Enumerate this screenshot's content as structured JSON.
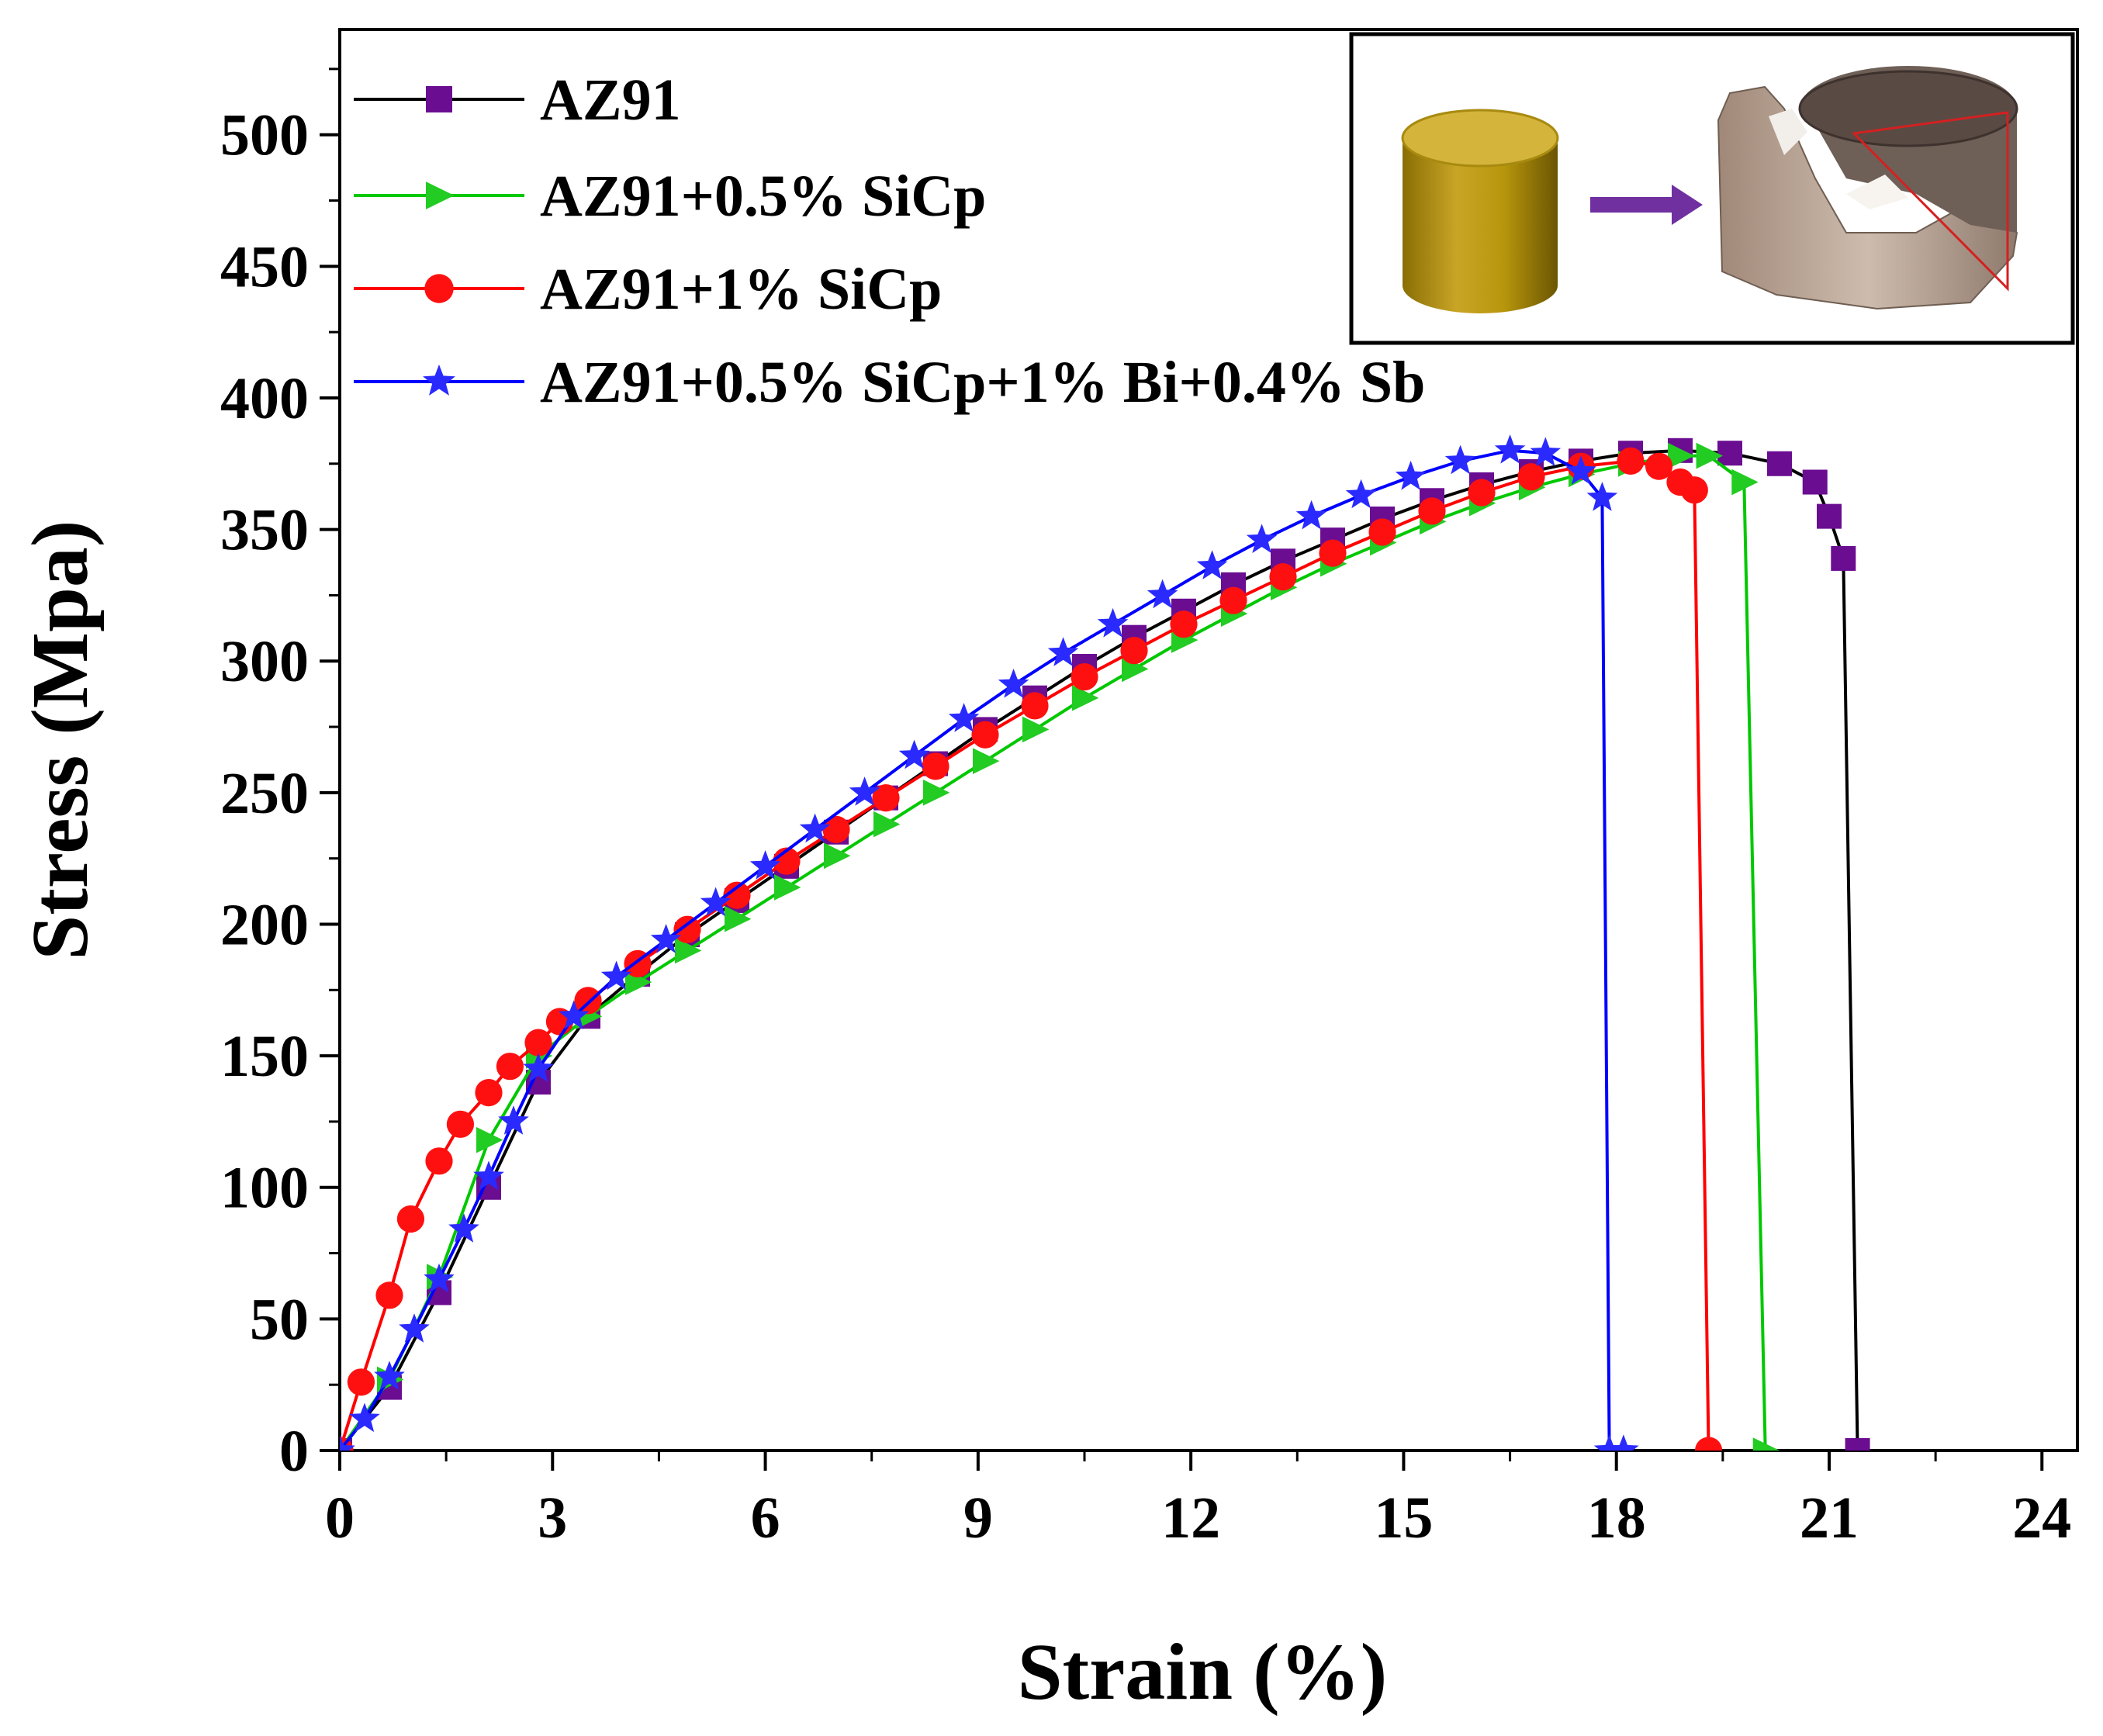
{
  "chart_data": {
    "type": "line",
    "title": "",
    "xlabel": "Strain (%)",
    "ylabel": "Stress (Mpa)",
    "xlim": [
      0,
      24.5
    ],
    "ylim": [
      0,
      540
    ],
    "x_ticks": [
      0,
      3,
      6,
      9,
      12,
      15,
      18,
      21,
      24
    ],
    "y_ticks": [
      0,
      50,
      100,
      150,
      200,
      250,
      300,
      350,
      400,
      450,
      500
    ],
    "grid": false,
    "legend_position": "top-left",
    "series": [
      {
        "name": "AZ91",
        "color": "#000000",
        "marker_color": "#6a0d91",
        "marker": "square",
        "x": [
          0,
          0.7,
          1.4,
          2.1,
          2.8,
          3.5,
          4.2,
          4.9,
          5.6,
          6.3,
          7.0,
          7.7,
          8.4,
          9.1,
          9.8,
          10.5,
          11.2,
          11.9,
          12.6,
          13.3,
          14.0,
          14.7,
          15.4,
          16.1,
          16.8,
          17.5,
          18.2,
          18.9,
          19.6,
          20.3,
          20.8,
          21.0,
          21.2,
          21.4
        ],
        "y": [
          0,
          24,
          60,
          100,
          140,
          165,
          181,
          196,
          209,
          222,
          235,
          248,
          261,
          274,
          286,
          298,
          309,
          319,
          329,
          338,
          346,
          354,
          361,
          367,
          372,
          376,
          379,
          380,
          379,
          375,
          368,
          355,
          339,
          0
        ]
      },
      {
        "name": "AZ91+0.5% SiCp",
        "color": "#00c800",
        "marker_color": "#22cc22",
        "marker": "triangle-right",
        "x": [
          0,
          0.7,
          1.4,
          2.1,
          2.8,
          3.5,
          4.2,
          4.9,
          5.6,
          6.3,
          7.0,
          7.7,
          8.4,
          9.1,
          9.8,
          10.5,
          11.2,
          11.9,
          12.6,
          13.3,
          14.0,
          14.7,
          15.4,
          16.1,
          16.8,
          17.5,
          18.2,
          18.9,
          19.3,
          19.8,
          20.1
        ],
        "y": [
          0,
          27,
          66,
          118,
          150,
          165,
          178,
          190,
          202,
          214,
          226,
          238,
          250,
          262,
          274,
          286,
          297,
          308,
          318,
          328,
          337,
          345,
          353,
          360,
          366,
          371,
          375,
          378,
          378,
          368,
          0
        ]
      },
      {
        "name": "AZ91+1% SiCp",
        "color": "#ff0000",
        "marker_color": "#ff1010",
        "marker": "circle",
        "x": [
          0,
          0.3,
          0.7,
          1.0,
          1.4,
          1.7,
          2.1,
          2.4,
          2.8,
          3.1,
          3.5,
          4.2,
          4.9,
          5.6,
          6.3,
          7.0,
          7.7,
          8.4,
          9.1,
          9.8,
          10.5,
          11.2,
          11.9,
          12.6,
          13.3,
          14.0,
          14.7,
          15.4,
          16.1,
          16.8,
          17.5,
          18.2,
          18.6,
          18.9,
          19.1,
          19.3
        ],
        "y": [
          0,
          26,
          59,
          88,
          110,
          124,
          136,
          146,
          155,
          163,
          171,
          185,
          198,
          211,
          224,
          236,
          248,
          260,
          272,
          283,
          294,
          304,
          314,
          323,
          332,
          341,
          349,
          357,
          364,
          370,
          374,
          376,
          374,
          368,
          365,
          0
        ]
      },
      {
        "name": "AZ91+0.5% SiCp+1% Bi+0.4% Sb",
        "color": "#0000ff",
        "marker_color": "#2a2aff",
        "marker": "star",
        "x": [
          0,
          0.35,
          0.7,
          1.05,
          1.4,
          1.75,
          2.1,
          2.45,
          2.8,
          3.3,
          3.9,
          4.6,
          5.3,
          6.0,
          6.7,
          7.4,
          8.1,
          8.8,
          9.5,
          10.2,
          10.9,
          11.6,
          12.3,
          13.0,
          13.7,
          14.4,
          15.1,
          15.8,
          16.5,
          17.0,
          17.5,
          17.8,
          17.9,
          18.1
        ],
        "y": [
          0,
          12,
          28,
          46,
          65,
          84,
          104,
          125,
          145,
          165,
          180,
          194,
          208,
          222,
          236,
          250,
          264,
          278,
          291,
          303,
          314,
          325,
          336,
          346,
          355,
          363,
          370,
          376,
          380,
          379,
          372,
          362,
          0,
          0
        ]
      }
    ]
  },
  "legend": {
    "labels": [
      "AZ91",
      "AZ91+0.5% SiCp",
      "AZ91+1% SiCp",
      "AZ91+0.5% SiCp+1% Bi+0.4% Sb"
    ]
  },
  "inset": {
    "description_icon": "cylinder-to-fractured-sample-icon",
    "arrow_color": "#7030a0",
    "cylinder_color": "#b8960c"
  }
}
